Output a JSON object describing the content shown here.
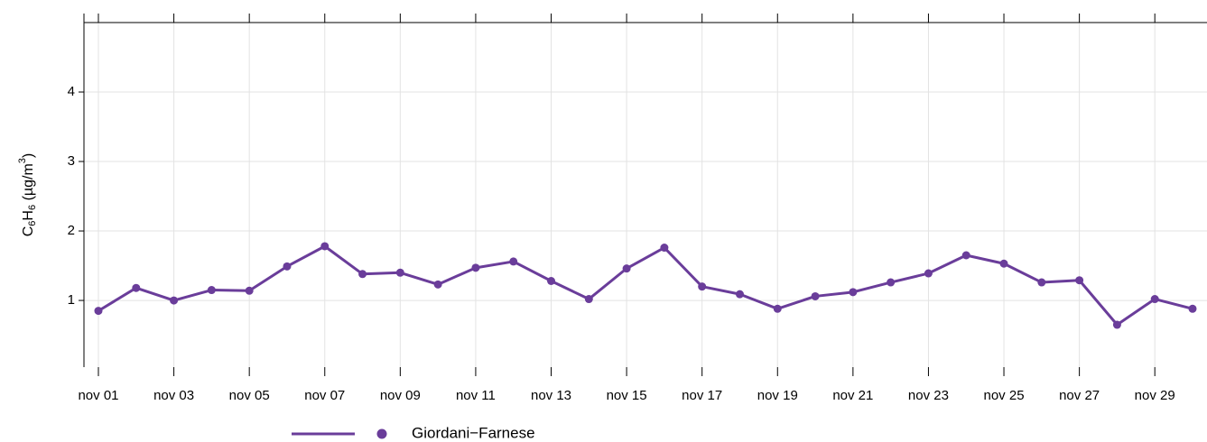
{
  "chart_data": {
    "type": "line",
    "y_label_parts": [
      "C",
      "6",
      "H",
      "6",
      " (µg/m",
      "3",
      ")"
    ],
    "categories": [
      "nov 01",
      null,
      "nov 03",
      null,
      "nov 05",
      null,
      "nov 07",
      null,
      "nov 09",
      null,
      "nov 11",
      null,
      "nov 13",
      null,
      "nov 15",
      null,
      "nov 17",
      null,
      "nov 19",
      null,
      "nov 21",
      null,
      "nov 23",
      null,
      "nov 25",
      null,
      "nov 27",
      null,
      "nov 29",
      null
    ],
    "series": [
      {
        "name": "Giordani−Farnese",
        "color": "#6a3d9a",
        "values": [
          0.85,
          1.18,
          1.0,
          1.15,
          1.14,
          1.49,
          1.78,
          1.38,
          1.4,
          1.23,
          1.47,
          1.56,
          1.28,
          1.02,
          1.46,
          1.76,
          1.2,
          1.09,
          0.88,
          1.06,
          1.12,
          1.26,
          1.39,
          1.65,
          1.53,
          1.26,
          1.29,
          0.65,
          1.02,
          0.88
        ]
      }
    ],
    "ylim": [
      0.04,
      5
    ],
    "yticks": [
      1,
      2,
      3,
      4
    ],
    "grid": true
  }
}
